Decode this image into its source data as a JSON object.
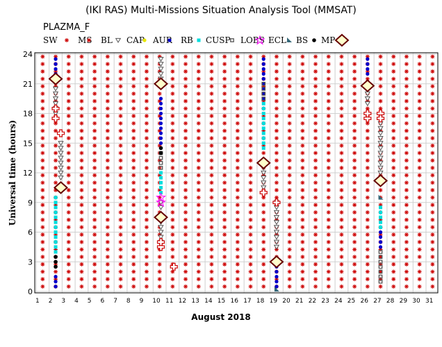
{
  "chart_data": {
    "type": "scatter",
    "title": "(IKI RAS) Multi-Missions Situation Analysis Tool (MMSAT)",
    "subtitle": "PLAZMA_F",
    "xlabel": "August 2018",
    "ylabel": "Universal time (hours)",
    "xlim": [
      1,
      32
    ],
    "ylim": [
      0,
      24
    ],
    "x_ticks": [
      "1",
      "2",
      "3",
      "4",
      "5",
      "6",
      "7",
      "8",
      "9",
      "10",
      "11",
      "12",
      "13",
      "14",
      "15",
      "16",
      "17",
      "18",
      "19",
      "20",
      "21",
      "22",
      "23",
      "24",
      "25",
      "26",
      "27",
      "28",
      "29",
      "30",
      "31"
    ],
    "y_ticks": [
      "0",
      "3",
      "6",
      "9",
      "12",
      "15",
      "18",
      "21",
      "24"
    ],
    "grid": true,
    "legend_position": "top",
    "legend": [
      "SW",
      "MS",
      "BL",
      "CAP",
      "AUR",
      "RB",
      "CUSP",
      "LOBS",
      "ECL",
      "BS",
      "MP"
    ],
    "colors": {
      "SW": "#cc0000",
      "MS": "#cc0000",
      "BL": "#e8e800",
      "CAP": "#0000cc",
      "AUR": "#00dddd",
      "RB": "#555555",
      "CUSP": "#ff00ff",
      "LOBS": "#336677",
      "ECL": "#000000",
      "BS": "#cc0000",
      "MP": "#660000"
    },
    "sw_grid": {
      "days_start": 1,
      "days_end": 31,
      "step_hours": 0.75
    },
    "series": [
      {
        "name": "CAP",
        "points": [
          [
            2.5,
            23.5
          ],
          [
            2.5,
            23
          ],
          [
            2.5,
            22.5
          ],
          [
            2.5,
            22
          ],
          [
            2.5,
            1.5
          ],
          [
            2.5,
            1
          ],
          [
            2.5,
            0.5
          ],
          [
            10.6,
            14.5
          ],
          [
            10.6,
            15
          ],
          [
            10.6,
            15.5
          ],
          [
            10.6,
            16
          ],
          [
            10.6,
            16.5
          ],
          [
            10.6,
            17
          ],
          [
            10.6,
            17.5
          ],
          [
            10.6,
            18
          ],
          [
            10.6,
            18.5
          ],
          [
            10.6,
            19
          ],
          [
            10.6,
            19.5
          ],
          [
            18.5,
            23.5
          ],
          [
            18.5,
            23
          ],
          [
            18.5,
            22.5
          ],
          [
            18.5,
            22
          ],
          [
            18.5,
            21.5
          ],
          [
            18.5,
            21
          ],
          [
            18.5,
            20.5
          ],
          [
            18.5,
            20
          ],
          [
            18.5,
            19.5
          ],
          [
            19.5,
            2.5
          ],
          [
            19.5,
            2
          ],
          [
            19.5,
            1.5
          ],
          [
            19.5,
            1
          ],
          [
            19.5,
            0.5
          ],
          [
            26.5,
            23.5
          ],
          [
            26.5,
            23
          ],
          [
            26.5,
            22.5
          ],
          [
            26.5,
            22
          ],
          [
            27.5,
            6
          ],
          [
            27.5,
            5.5
          ],
          [
            27.5,
            5
          ],
          [
            27.5,
            4.5
          ]
        ]
      },
      {
        "name": "AUR",
        "points": [
          [
            2.5,
            9.5
          ],
          [
            2.5,
            9
          ],
          [
            2.5,
            8.5
          ],
          [
            2.5,
            8
          ],
          [
            2.5,
            7.5
          ],
          [
            2.5,
            7
          ],
          [
            2.5,
            6.5
          ],
          [
            2.5,
            6
          ],
          [
            2.5,
            5.5
          ],
          [
            2.5,
            5
          ],
          [
            2.5,
            4.5
          ],
          [
            2.5,
            4
          ],
          [
            10.6,
            12
          ],
          [
            10.6,
            11.5
          ],
          [
            10.6,
            11
          ],
          [
            10.6,
            10.5
          ],
          [
            10.6,
            10
          ],
          [
            18.5,
            19
          ],
          [
            18.5,
            18.5
          ],
          [
            18.5,
            18
          ],
          [
            18.5,
            17.5
          ],
          [
            18.5,
            17
          ],
          [
            18.5,
            16.5
          ],
          [
            18.5,
            16
          ],
          [
            18.5,
            15.5
          ],
          [
            18.5,
            15
          ],
          [
            18.5,
            14.5
          ],
          [
            27.5,
            8.5
          ],
          [
            27.5,
            8
          ],
          [
            27.5,
            7.5
          ],
          [
            27.5,
            7
          ],
          [
            27.5,
            6.5
          ]
        ]
      },
      {
        "name": "RB",
        "points": [
          [
            10.6,
            14
          ],
          [
            10.6,
            13.5
          ],
          [
            10.6,
            13
          ],
          [
            10.6,
            12.5
          ],
          [
            18.5,
            21
          ],
          [
            18.5,
            20.5
          ],
          [
            18.5,
            20
          ],
          [
            18.5,
            19.5
          ],
          [
            27.5,
            4
          ],
          [
            27.5,
            3.5
          ],
          [
            27.5,
            3
          ],
          [
            27.5,
            2.5
          ],
          [
            27.5,
            2
          ],
          [
            27.5,
            1.5
          ],
          [
            27.5,
            1
          ]
        ]
      },
      {
        "name": "BL",
        "points": [
          [
            2.5,
            20.5
          ],
          [
            2.5,
            20
          ],
          [
            2.5,
            19.5
          ],
          [
            2.5,
            19
          ],
          [
            2.5,
            18.5
          ],
          [
            2.5,
            18
          ],
          [
            2.9,
            15
          ],
          [
            2.9,
            14.5
          ],
          [
            2.9,
            14
          ],
          [
            2.9,
            13.5
          ],
          [
            2.9,
            13
          ],
          [
            2.9,
            12.5
          ],
          [
            2.9,
            12
          ],
          [
            2.9,
            11.5
          ],
          [
            10.6,
            23.5
          ],
          [
            10.6,
            23
          ],
          [
            10.6,
            22.5
          ],
          [
            10.6,
            22
          ],
          [
            10.6,
            21.5
          ],
          [
            10.6,
            9
          ],
          [
            10.6,
            8.5
          ],
          [
            10.6,
            7
          ],
          [
            10.6,
            6.5
          ],
          [
            10.6,
            6
          ],
          [
            10.6,
            5.5
          ],
          [
            10.6,
            5
          ],
          [
            18.5,
            12.5
          ],
          [
            18.5,
            12
          ],
          [
            18.5,
            11.5
          ],
          [
            18.5,
            11
          ],
          [
            18.5,
            10.5
          ],
          [
            19.5,
            9
          ],
          [
            19.5,
            8.5
          ],
          [
            19.5,
            8
          ],
          [
            19.5,
            7.5
          ],
          [
            19.5,
            7
          ],
          [
            19.5,
            6.5
          ],
          [
            19.5,
            6
          ],
          [
            19.5,
            5.5
          ],
          [
            19.5,
            5
          ],
          [
            19.5,
            4.5
          ],
          [
            26.5,
            20.5
          ],
          [
            26.5,
            20
          ],
          [
            26.5,
            19.5
          ],
          [
            26.5,
            19
          ],
          [
            27.5,
            17
          ],
          [
            27.5,
            16.5
          ],
          [
            27.5,
            16
          ],
          [
            27.5,
            15.5
          ],
          [
            27.5,
            15
          ],
          [
            27.5,
            14.5
          ],
          [
            27.5,
            14
          ],
          [
            27.5,
            13.5
          ],
          [
            27.5,
            13
          ],
          [
            27.5,
            12.5
          ],
          [
            27.5,
            12
          ]
        ]
      },
      {
        "name": "CUSP",
        "points": [
          [
            10.6,
            9.5
          ],
          [
            10.6,
            9
          ]
        ]
      },
      {
        "name": "ECL",
        "points": [
          [
            2.5,
            3.5
          ],
          [
            2.5,
            3
          ],
          [
            2.5,
            2.5
          ],
          [
            10.6,
            14.5
          ],
          [
            10.6,
            14
          ]
        ]
      },
      {
        "name": "LOBS",
        "points": [
          [
            27.5,
            9.5
          ],
          [
            19.5,
            0.2
          ]
        ]
      },
      {
        "name": "BS",
        "points": [
          [
            2.5,
            17.5
          ],
          [
            2.5,
            18.5
          ],
          [
            2.9,
            16
          ],
          [
            10.6,
            4.5
          ],
          [
            10.6,
            5
          ],
          [
            11.6,
            2.5
          ],
          [
            18.5,
            10
          ],
          [
            19.5,
            9
          ],
          [
            26.5,
            17.5
          ],
          [
            26.5,
            18
          ],
          [
            27.5,
            18
          ],
          [
            27.5,
            17.5
          ]
        ]
      },
      {
        "name": "MP",
        "points": [
          [
            2.5,
            21.5
          ],
          [
            2.9,
            10.5
          ],
          [
            10.6,
            21
          ],
          [
            10.6,
            7.5
          ],
          [
            18.5,
            13
          ],
          [
            19.5,
            3
          ],
          [
            26.5,
            20.8
          ],
          [
            27.5,
            11.2
          ]
        ]
      }
    ]
  }
}
